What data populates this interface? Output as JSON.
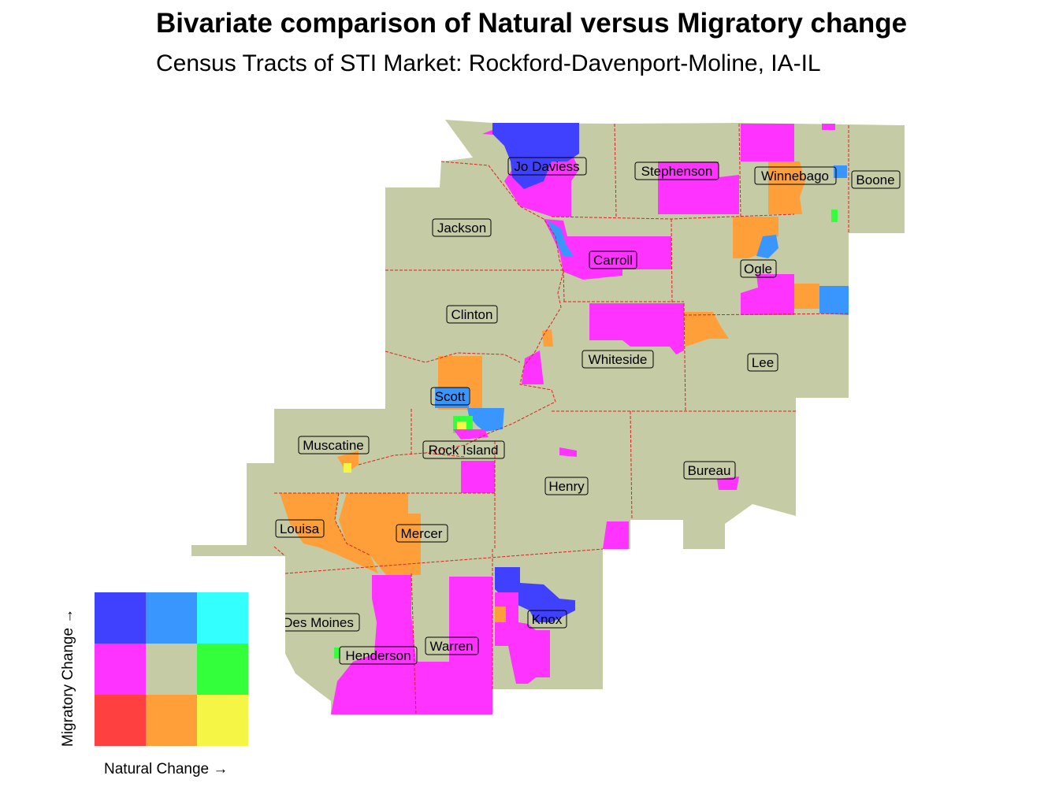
{
  "title": "Bivariate comparison of Natural versus Migratory change",
  "subtitle": "Census Tracts of STI Market: Rockford-Davenport-Moline, IA-IL",
  "colors": {
    "base": "#c5cba5",
    "boundary": "#e02020",
    "high_migratory_low_natural": "#4040ff",
    "high_migratory_mid_natural": "#3a96ff",
    "high_migratory_high_natural": "#33ffff",
    "mid_migratory_low_natural": "#ff33ff",
    "mid_migratory_mid_natural": "#c5cba5",
    "mid_migratory_high_natural": "#33ff3a",
    "low_migratory_low_natural": "#ff4040",
    "low_migratory_mid_natural": "#ff9f3a",
    "low_migratory_high_natural": "#f5f545"
  },
  "counties": [
    {
      "name": "Jo Daviess"
    },
    {
      "name": "Stephenson"
    },
    {
      "name": "Winnebago"
    },
    {
      "name": "Boone"
    },
    {
      "name": "Jackson"
    },
    {
      "name": "Carroll"
    },
    {
      "name": "Ogle"
    },
    {
      "name": "Clinton"
    },
    {
      "name": "Whiteside"
    },
    {
      "name": "Lee"
    },
    {
      "name": "Scott"
    },
    {
      "name": "Muscatine"
    },
    {
      "name": "Rock Island"
    },
    {
      "name": "Henry"
    },
    {
      "name": "Bureau"
    },
    {
      "name": "Louisa"
    },
    {
      "name": "Mercer"
    },
    {
      "name": "Des Moines"
    },
    {
      "name": "Henderson"
    },
    {
      "name": "Warren"
    },
    {
      "name": "Knox"
    }
  ],
  "legend": {
    "x_label": "Natural Change →",
    "y_label": "Migratory Change →",
    "rows": [
      [
        "#4040ff",
        "#3a96ff",
        "#33ffff"
      ],
      [
        "#ff33ff",
        "#c5cba5",
        "#33ff3a"
      ],
      [
        "#ff4040",
        "#ff9f3a",
        "#f5f545"
      ]
    ]
  }
}
